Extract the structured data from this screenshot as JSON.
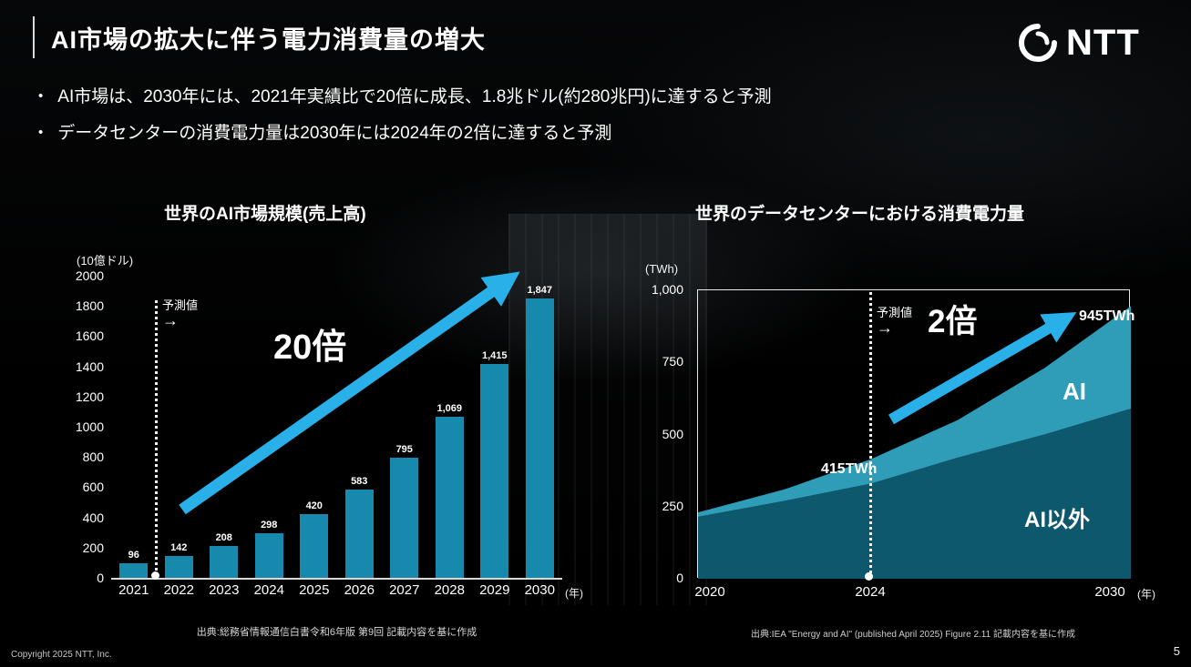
{
  "slide": {
    "title": "AI市場の拡大に伴う電力消費量の増大",
    "logo": {
      "text": "NTT"
    },
    "bullets": [
      "AI市場は、2030年には、2021年実績比で20倍に成長、1.8兆ドル(約280兆円)に達すると予測",
      "データセンターの消費電力量は2030年には2024年の2倍に達すると予測"
    ],
    "copyright": "Copyright 2025 NTT, Inc.",
    "page_number": "5"
  },
  "icons": {
    "forecast_arrow": "→"
  },
  "colors": {
    "bar": "#1789ad",
    "area_ai": "#2f9db8",
    "area_non_ai": "#0e586d",
    "arrow": "#29b0e8"
  },
  "chart_data": [
    {
      "type": "bar",
      "title": "世界のAI市場規模(売上高)",
      "unit_label": "(10億ドル)",
      "categories": [
        "2021",
        "2022",
        "2023",
        "2024",
        "2025",
        "2026",
        "2027",
        "2028",
        "2029",
        "2030"
      ],
      "values": [
        96,
        142,
        208,
        298,
        420,
        583,
        795,
        1069,
        1415,
        1847
      ],
      "value_labels": [
        "96",
        "142",
        "208",
        "298",
        "420",
        "583",
        "795",
        "1,069",
        "1,415",
        "1,847"
      ],
      "ylim": [
        0,
        2000
      ],
      "yticks": [
        0,
        200,
        400,
        600,
        800,
        1000,
        1200,
        1400,
        1600,
        1800,
        2000
      ],
      "x_axis_suffix": "(年)",
      "annotations": {
        "forecast_label": "予測値",
        "growth_label": "20倍"
      },
      "source": "出典:総務省情報通信白書令和6年版 第9回 記載内容を基に作成",
      "legend": "none",
      "grid": false
    },
    {
      "type": "area",
      "title": "世界のデータセンターにおける消費電力量",
      "unit_label": "(TWh)",
      "x": [
        2020,
        2022,
        2024,
        2026,
        2028,
        2030
      ],
      "xticks": [
        "2020",
        "2024",
        "2030"
      ],
      "x_axis_suffix": "(年)",
      "ylim": [
        0,
        1000
      ],
      "yticks": [
        "0",
        "250",
        "500",
        "750",
        "1,000"
      ],
      "series": [
        {
          "name": "AI以外",
          "values": [
            215,
            270,
            330,
            420,
            500,
            590
          ]
        },
        {
          "name": "AI",
          "values": [
            15,
            40,
            85,
            130,
            230,
            355
          ]
        }
      ],
      "annotations": {
        "forecast_label": "予測値",
        "growth_label": "2倍",
        "total_2024": "415TWh",
        "total_2030": "945TWh"
      },
      "source": "出典:IEA \"Energy and AI\" (published April 2025) Figure 2.11 記載内容を基に作成",
      "legend": "in-chart-labels",
      "grid": false
    }
  ]
}
